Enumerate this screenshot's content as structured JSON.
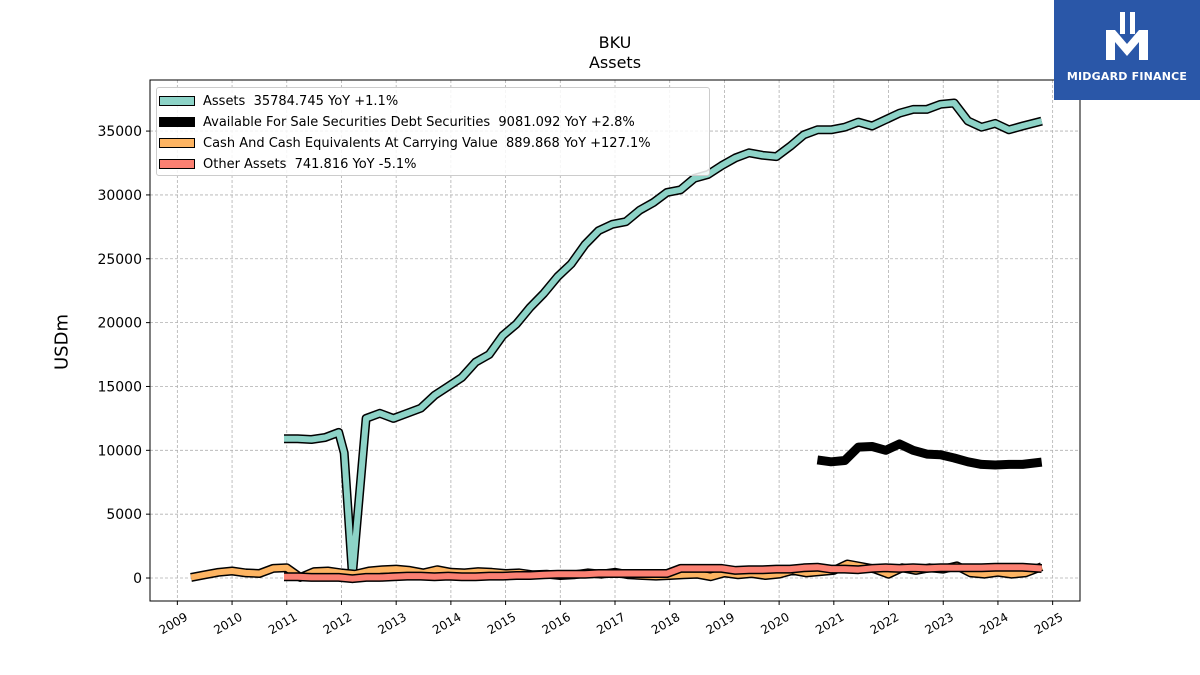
{
  "chart_data": {
    "type": "line",
    "title": "BKU",
    "subtitle": "Assets",
    "ylabel": "USDm",
    "xlim": [
      2008.5,
      2025.5
    ],
    "ylim": [
      -1800,
      39000
    ],
    "x_ticks": [
      2009,
      2010,
      2011,
      2012,
      2013,
      2014,
      2015,
      2016,
      2017,
      2018,
      2019,
      2020,
      2021,
      2022,
      2023,
      2024,
      2025
    ],
    "y_ticks": [
      0,
      5000,
      10000,
      15000,
      20000,
      25000,
      30000,
      35000
    ],
    "grid": true,
    "legend_position": "top-left",
    "series": [
      {
        "name": "Assets  35784.745 YoY +1.1%",
        "color": "#8dd3c7",
        "x": [
          2010.95,
          2011.2,
          2011.45,
          2011.7,
          2011.95,
          2012.05,
          2012.2,
          2012.45,
          2012.7,
          2012.95,
          2013.2,
          2013.45,
          2013.7,
          2013.95,
          2014.2,
          2014.45,
          2014.7,
          2014.95,
          2015.2,
          2015.45,
          2015.7,
          2015.95,
          2016.2,
          2016.45,
          2016.7,
          2016.95,
          2017.2,
          2017.45,
          2017.7,
          2017.95,
          2018.2,
          2018.45,
          2018.7,
          2018.95,
          2019.2,
          2019.45,
          2019.7,
          2019.95,
          2020.2,
          2020.45,
          2020.7,
          2020.95,
          2021.2,
          2021.45,
          2021.7,
          2021.95,
          2022.2,
          2022.45,
          2022.7,
          2022.95,
          2023.2,
          2023.45,
          2023.7,
          2023.95,
          2024.2,
          2024.45,
          2024.8
        ],
        "values": [
          10900,
          10900,
          10850,
          11000,
          11400,
          9800,
          200,
          12500,
          12900,
          12500,
          12900,
          13300,
          14300,
          15000,
          15700,
          16900,
          17500,
          19000,
          19900,
          21200,
          22300,
          23600,
          24600,
          26100,
          27200,
          27700,
          27900,
          28800,
          29400,
          30200,
          30400,
          31300,
          31600,
          32300,
          32900,
          33300,
          33100,
          33000,
          33800,
          34700,
          35100,
          35100,
          35300,
          35700,
          35400,
          35900,
          36400,
          36700,
          36700,
          37100,
          37200,
          35800,
          35300,
          35600,
          35100,
          35400,
          35784.745
        ]
      },
      {
        "name": "Available For Sale Securities Debt Securities  9081.092 YoY +2.8%",
        "color": "#000000",
        "x": [
          2020.7,
          2020.95,
          2021.2,
          2021.45,
          2021.7,
          2021.95,
          2022.2,
          2022.45,
          2022.7,
          2022.95,
          2023.2,
          2023.45,
          2023.7,
          2023.95,
          2024.2,
          2024.45,
          2024.8
        ],
        "values": [
          9250,
          9100,
          9200,
          10250,
          10300,
          10000,
          10500,
          10000,
          9700,
          9650,
          9400,
          9100,
          8900,
          8850,
          8900,
          8900,
          9081.092
        ]
      },
      {
        "name": "Cash And Cash Equivalents At Carrying Value  889.868 YoY +127.1%",
        "color": "#fdb462",
        "x": [
          2009.25,
          2009.5,
          2009.75,
          2010.0,
          2010.25,
          2010.5,
          2010.75,
          2011.0,
          2011.25,
          2011.5,
          2011.75,
          2012.0,
          2012.25,
          2012.5,
          2012.75,
          2013.0,
          2013.25,
          2013.5,
          2013.75,
          2014.0,
          2014.25,
          2014.5,
          2014.75,
          2015.0,
          2015.25,
          2015.5,
          2015.75,
          2016.0,
          2016.25,
          2016.5,
          2016.75,
          2017.0,
          2017.25,
          2017.5,
          2017.75,
          2018.0,
          2018.25,
          2018.5,
          2018.75,
          2019.0,
          2019.25,
          2019.5,
          2019.75,
          2020.0,
          2020.25,
          2020.5,
          2020.75,
          2021.0,
          2021.25,
          2021.5,
          2021.75,
          2022.0,
          2022.25,
          2022.5,
          2022.75,
          2023.0,
          2023.25,
          2023.5,
          2023.75,
          2024.0,
          2024.25,
          2024.5,
          2024.8
        ],
        "values": [
          50,
          250,
          450,
          550,
          400,
          350,
          750,
          800,
          50,
          500,
          550,
          400,
          300,
          550,
          650,
          700,
          600,
          400,
          650,
          450,
          400,
          500,
          450,
          350,
          400,
          250,
          300,
          200,
          250,
          400,
          300,
          450,
          250,
          200,
          150,
          200,
          250,
          300,
          100,
          400,
          250,
          350,
          200,
          300,
          600,
          400,
          500,
          600,
          1100,
          900,
          700,
          300,
          800,
          600,
          800,
          700,
          950,
          400,
          300,
          450,
          300,
          400,
          889.868
        ]
      },
      {
        "name": "Other Assets  741.816 YoY -5.1%",
        "color": "#fb8072",
        "x": [
          2010.95,
          2011.2,
          2011.45,
          2011.7,
          2011.95,
          2012.2,
          2012.45,
          2012.7,
          2012.95,
          2013.2,
          2013.45,
          2013.7,
          2013.95,
          2014.2,
          2014.45,
          2014.7,
          2014.95,
          2015.2,
          2015.45,
          2015.7,
          2015.95,
          2016.2,
          2016.45,
          2016.7,
          2016.95,
          2017.2,
          2017.45,
          2017.7,
          2017.95,
          2018.2,
          2018.45,
          2018.7,
          2018.95,
          2019.2,
          2019.45,
          2019.7,
          2019.95,
          2020.2,
          2020.45,
          2020.7,
          2020.95,
          2021.2,
          2021.45,
          2021.7,
          2021.95,
          2022.2,
          2022.45,
          2022.7,
          2022.95,
          2023.2,
          2023.45,
          2023.7,
          2023.95,
          2024.2,
          2024.45,
          2024.8
        ],
        "values": [
          100,
          100,
          50,
          50,
          50,
          -50,
          50,
          50,
          100,
          150,
          150,
          100,
          150,
          100,
          100,
          150,
          150,
          200,
          200,
          250,
          300,
          300,
          300,
          350,
          350,
          350,
          350,
          350,
          350,
          750,
          750,
          750,
          750,
          600,
          650,
          650,
          700,
          700,
          800,
          850,
          700,
          700,
          650,
          750,
          800,
          750,
          800,
          750,
          800,
          800,
          800,
          800,
          850,
          850,
          850,
          741.816
        ]
      }
    ]
  },
  "logo": {
    "text": "MIDGARD FINANCE"
  }
}
